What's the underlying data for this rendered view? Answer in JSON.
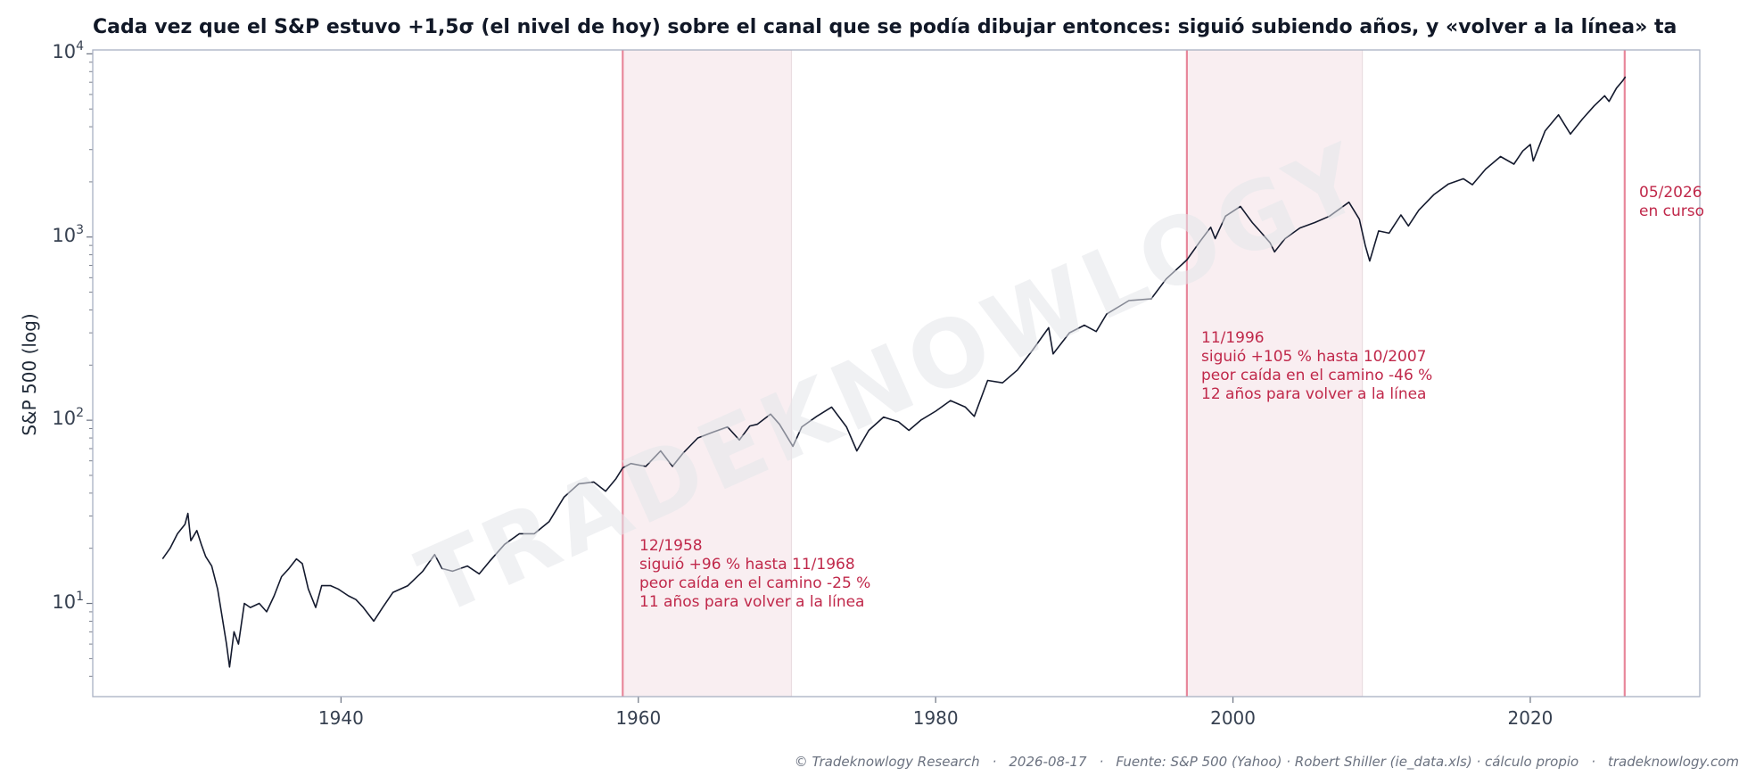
{
  "title": "Cada vez que el S&P estuvo +1,5σ (el nivel de hoy) sobre el canal que se podía dibujar entonces: siguió subiendo años, y «volver a la línea» ta",
  "watermark": "TRADEKNOWLOGY",
  "footer": {
    "copyright": "© Tradeknowlogy Research",
    "date": "2026-08-17",
    "source": "Fuente: S&P 500 (Yahoo) · Robert Shiller (ie_data.xls) · cálculo propio",
    "site": "tradeknowlogy.com"
  },
  "colors": {
    "series": "#141a2e",
    "event_line": "#e8879b",
    "shade": "#f9eef1",
    "annotation": "#c0284a",
    "frame": "#a9b0c2"
  },
  "chart_data": {
    "type": "line",
    "title": "Cada vez que el S&P estuvo +1,5σ (el nivel de hoy) sobre el canal que se podía dibujar entonces: siguió subiendo años, y «volver a la línea» ta",
    "xlabel": "",
    "ylabel": "S&P 500 (log)",
    "yscale": "log",
    "xlim": [
      1923.3,
      2031.4
    ],
    "ylim": [
      3.1,
      10500
    ],
    "x_ticks": [
      1940,
      1960,
      1980,
      2000,
      2020
    ],
    "y_ticks": [
      {
        "value": 10,
        "base": "10",
        "exp": "1"
      },
      {
        "value": 100,
        "base": "10",
        "exp": "2"
      },
      {
        "value": 1000,
        "base": "10",
        "exp": "3"
      },
      {
        "value": 10000,
        "base": "10",
        "exp": "4"
      }
    ],
    "grid": false,
    "series": [
      {
        "points": [
          [
            1928.0,
            17.5
          ],
          [
            1928.5,
            20
          ],
          [
            1929.0,
            24
          ],
          [
            1929.5,
            27
          ],
          [
            1929.7,
            31
          ],
          [
            1929.9,
            22
          ],
          [
            1930.3,
            25
          ],
          [
            1930.6,
            21
          ],
          [
            1930.9,
            18
          ],
          [
            1931.3,
            16
          ],
          [
            1931.7,
            12
          ],
          [
            1932.0,
            8.5
          ],
          [
            1932.3,
            6
          ],
          [
            1932.5,
            4.5
          ],
          [
            1932.8,
            7
          ],
          [
            1933.1,
            6
          ],
          [
            1933.5,
            10
          ],
          [
            1933.9,
            9.5
          ],
          [
            1934.5,
            10
          ],
          [
            1935.0,
            9
          ],
          [
            1935.5,
            11
          ],
          [
            1936.0,
            14
          ],
          [
            1936.5,
            15.5
          ],
          [
            1937.0,
            17.5
          ],
          [
            1937.4,
            16.5
          ],
          [
            1937.8,
            12
          ],
          [
            1938.3,
            9.5
          ],
          [
            1938.7,
            12.5
          ],
          [
            1939.3,
            12.5
          ],
          [
            1939.8,
            12
          ],
          [
            1940.5,
            11
          ],
          [
            1941.0,
            10.5
          ],
          [
            1941.5,
            9.5
          ],
          [
            1942.2,
            8
          ],
          [
            1942.8,
            9.5
          ],
          [
            1943.5,
            11.5
          ],
          [
            1944.5,
            12.5
          ],
          [
            1945.5,
            15
          ],
          [
            1946.3,
            18.5
          ],
          [
            1946.8,
            15.5
          ],
          [
            1947.5,
            15
          ],
          [
            1948.5,
            16
          ],
          [
            1949.3,
            14.5
          ],
          [
            1950.0,
            17
          ],
          [
            1951.0,
            21
          ],
          [
            1952.0,
            24
          ],
          [
            1953.0,
            24
          ],
          [
            1954.0,
            28
          ],
          [
            1955.0,
            38
          ],
          [
            1956.0,
            45
          ],
          [
            1957.0,
            46
          ],
          [
            1957.8,
            41
          ],
          [
            1958.5,
            48
          ],
          [
            1958.95,
            55
          ],
          [
            1959.5,
            58
          ],
          [
            1960.5,
            56
          ],
          [
            1961.5,
            68
          ],
          [
            1962.3,
            56
          ],
          [
            1963.0,
            66
          ],
          [
            1964.0,
            80
          ],
          [
            1965.0,
            86
          ],
          [
            1966.0,
            92
          ],
          [
            1966.8,
            78
          ],
          [
            1967.5,
            93
          ],
          [
            1968.0,
            95
          ],
          [
            1968.9,
            108
          ],
          [
            1969.5,
            95
          ],
          [
            1970.4,
            72
          ],
          [
            1971.0,
            92
          ],
          [
            1972.0,
            105
          ],
          [
            1973.0,
            118
          ],
          [
            1974.0,
            92
          ],
          [
            1974.7,
            68
          ],
          [
            1975.5,
            88
          ],
          [
            1976.5,
            104
          ],
          [
            1977.5,
            98
          ],
          [
            1978.2,
            88
          ],
          [
            1979.0,
            100
          ],
          [
            1980.0,
            112
          ],
          [
            1981.0,
            128
          ],
          [
            1982.0,
            118
          ],
          [
            1982.6,
            105
          ],
          [
            1983.5,
            165
          ],
          [
            1984.5,
            160
          ],
          [
            1985.5,
            188
          ],
          [
            1986.5,
            240
          ],
          [
            1987.6,
            320
          ],
          [
            1987.9,
            230
          ],
          [
            1989.0,
            300
          ],
          [
            1990.0,
            330
          ],
          [
            1990.8,
            305
          ],
          [
            1991.5,
            380
          ],
          [
            1993.0,
            450
          ],
          [
            1994.5,
            460
          ],
          [
            1995.5,
            590
          ],
          [
            1996.9,
            750
          ],
          [
            1997.8,
            950
          ],
          [
            1998.5,
            1130
          ],
          [
            1998.8,
            980
          ],
          [
            1999.5,
            1300
          ],
          [
            2000.5,
            1470
          ],
          [
            2001.3,
            1200
          ],
          [
            2001.8,
            1080
          ],
          [
            2002.5,
            930
          ],
          [
            2002.8,
            830
          ],
          [
            2003.5,
            980
          ],
          [
            2004.5,
            1120
          ],
          [
            2005.5,
            1200
          ],
          [
            2006.5,
            1300
          ],
          [
            2007.8,
            1550
          ],
          [
            2008.5,
            1250
          ],
          [
            2008.9,
            900
          ],
          [
            2009.2,
            740
          ],
          [
            2009.8,
            1080
          ],
          [
            2010.5,
            1050
          ],
          [
            2011.3,
            1320
          ],
          [
            2011.8,
            1150
          ],
          [
            2012.5,
            1400
          ],
          [
            2013.5,
            1700
          ],
          [
            2014.5,
            1950
          ],
          [
            2015.5,
            2080
          ],
          [
            2016.1,
            1930
          ],
          [
            2017.0,
            2350
          ],
          [
            2018.0,
            2750
          ],
          [
            2018.9,
            2500
          ],
          [
            2019.5,
            2950
          ],
          [
            2020.0,
            3200
          ],
          [
            2020.2,
            2600
          ],
          [
            2021.0,
            3800
          ],
          [
            2021.9,
            4650
          ],
          [
            2022.7,
            3650
          ],
          [
            2023.5,
            4400
          ],
          [
            2024.3,
            5200
          ],
          [
            2025.0,
            5900
          ],
          [
            2025.3,
            5500
          ],
          [
            2025.8,
            6500
          ],
          [
            2026.2,
            7100
          ],
          [
            2026.4,
            7500
          ]
        ]
      }
    ],
    "events": [
      {
        "start": 1958.95,
        "end": 1970.3,
        "date": "12/1958",
        "line1": "siguió +96 % hasta 11/1968",
        "line2": "peor caída en el camino -25 %",
        "line3": "11 años para volver a la línea"
      },
      {
        "start": 1996.9,
        "end": 2008.7,
        "date": "11/1996",
        "line1": "siguió +105 % hasta 10/2007",
        "line2": "peor caída en el camino -46 %",
        "line3": "12 años para volver a la línea"
      },
      {
        "start": 2026.35,
        "end": null,
        "date": "05/2026",
        "line1": "en curso"
      }
    ]
  }
}
